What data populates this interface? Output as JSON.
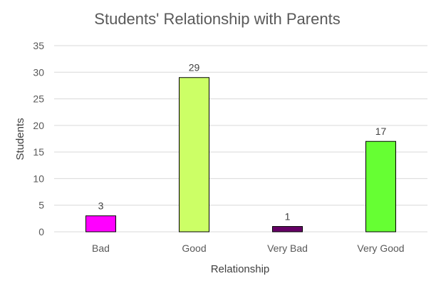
{
  "chart_data": {
    "type": "bar",
    "title": "Students'  Relationship with Parents",
    "xlabel": "Relationship",
    "ylabel": "Students",
    "categories": [
      "Bad",
      "Good",
      "Very Bad",
      "Very Good"
    ],
    "values": [
      3,
      29,
      1,
      17
    ],
    "data_labels": [
      "3",
      "29",
      "1",
      "17"
    ],
    "colors": [
      "#ff00ff",
      "#ccff66",
      "#660066",
      "#66ff33"
    ],
    "ylim": [
      0,
      35
    ],
    "yticks": [
      0,
      5,
      10,
      15,
      20,
      25,
      30,
      35
    ],
    "grid": true,
    "legend": "none"
  }
}
